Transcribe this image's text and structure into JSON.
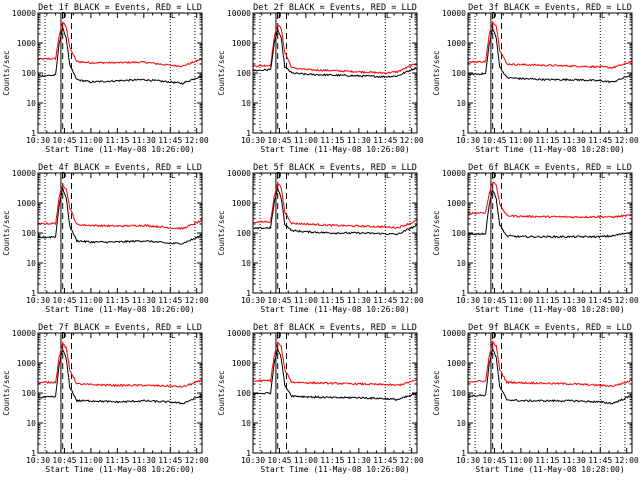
{
  "window": {
    "width": 640,
    "height": 480
  },
  "colors": {
    "background": "#ffffff",
    "events": "#000000",
    "lld": "#ff0000",
    "axis": "#000000"
  },
  "chart_data": [
    {
      "type": "line",
      "title": "Det 1f BLACK = Events, RED = LLD",
      "xlabel": "Start Time (11-May-08 10:26:00)",
      "ylabel": "Counts/sec",
      "yscale": "log",
      "ylim": [
        1,
        10000
      ],
      "xlim": [
        "10:30",
        "12:03"
      ],
      "xticks": [
        "10:30",
        "10:45",
        "11:00",
        "11:15",
        "11:30",
        "11:45",
        "12:00"
      ],
      "yticks": [
        "1",
        "10",
        "100",
        "1000",
        "10000"
      ],
      "markers": {
        "solid_vlines": [
          "10:30",
          "10:43"
        ],
        "dotted_vlines": [
          "10:34",
          "11:45",
          "11:59"
        ],
        "dashed_vlines": [
          "10:44",
          "10:49"
        ],
        "top_glyphs": [
          "D",
          "L"
        ]
      },
      "series": [
        {
          "color": "#ff0000",
          "x": [
            "10:30",
            "10:40",
            "10:42",
            "10:44",
            "10:46",
            "10:48",
            "10:52",
            "11:00",
            "11:15",
            "11:30",
            "11:45",
            "11:52",
            "12:00",
            "12:03"
          ],
          "values": [
            290,
            300,
            1800,
            5000,
            3500,
            700,
            240,
            220,
            220,
            230,
            180,
            170,
            250,
            300
          ]
        },
        {
          "color": "#000000",
          "x": [
            "10:30",
            "10:40",
            "10:42",
            "10:44",
            "10:46",
            "10:48",
            "10:52",
            "11:00",
            "11:15",
            "11:30",
            "11:45",
            "11:52",
            "12:00",
            "12:03"
          ],
          "values": [
            80,
            85,
            1000,
            3000,
            1500,
            180,
            60,
            50,
            55,
            60,
            50,
            45,
            70,
            80
          ]
        }
      ]
    },
    {
      "type": "line",
      "title": "Det 2f BLACK = Events, RED = LLD",
      "xlabel": "Start Time (11-May-08 10:26:00)",
      "ylabel": "Counts/sec",
      "yscale": "log",
      "ylim": [
        1,
        10000
      ],
      "xlim": [
        "10:30",
        "12:03"
      ],
      "xticks": [
        "10:30",
        "10:45",
        "11:00",
        "11:15",
        "11:30",
        "11:45",
        "12:00"
      ],
      "yticks": [
        "1",
        "10",
        "100",
        "1000",
        "10000"
      ],
      "markers": {
        "solid_vlines": [
          "10:30",
          "10:43"
        ],
        "dotted_vlines": [
          "10:34",
          "11:45",
          "11:59"
        ],
        "dashed_vlines": [
          "10:44",
          "10:49"
        ],
        "top_glyphs": [
          "D",
          "L"
        ]
      },
      "series": [
        {
          "color": "#ff0000",
          "x": [
            "10:30",
            "10:40",
            "10:42",
            "10:44",
            "10:46",
            "10:48",
            "10:52",
            "11:00",
            "11:15",
            "11:30",
            "11:45",
            "11:52",
            "12:00",
            "12:03"
          ],
          "values": [
            170,
            180,
            1500,
            4200,
            3000,
            500,
            150,
            130,
            120,
            110,
            100,
            110,
            180,
            200
          ]
        },
        {
          "color": "#000000",
          "x": [
            "10:30",
            "10:40",
            "10:42",
            "10:44",
            "10:46",
            "10:48",
            "10:52",
            "11:00",
            "11:15",
            "11:30",
            "11:45",
            "11:52",
            "12:00",
            "12:03"
          ],
          "values": [
            120,
            130,
            900,
            2800,
            1400,
            160,
            100,
            90,
            85,
            80,
            75,
            80,
            130,
            150
          ]
        }
      ]
    },
    {
      "type": "line",
      "title": "Det 3f BLACK = Events, RED = LLD",
      "xlabel": "Start Time (11-May-08 10:28:00)",
      "ylabel": "Counts/sec",
      "yscale": "log",
      "ylim": [
        1,
        10000
      ],
      "xlim": [
        "10:30",
        "12:03"
      ],
      "xticks": [
        "10:30",
        "10:45",
        "11:00",
        "11:15",
        "11:30",
        "11:45",
        "12:00"
      ],
      "yticks": [
        "1",
        "10",
        "100",
        "1000",
        "10000"
      ],
      "markers": {
        "solid_vlines": [
          "10:30",
          "10:43"
        ],
        "dotted_vlines": [
          "10:34",
          "11:45",
          "11:59"
        ],
        "dashed_vlines": [
          "10:44",
          "10:49"
        ],
        "top_glyphs": [
          "D",
          "L"
        ]
      },
      "series": [
        {
          "color": "#ff0000",
          "x": [
            "10:30",
            "10:40",
            "10:42",
            "10:44",
            "10:46",
            "10:48",
            "10:52",
            "11:00",
            "11:15",
            "11:30",
            "11:45",
            "11:52",
            "12:00",
            "12:03"
          ],
          "values": [
            230,
            240,
            1800,
            5000,
            3800,
            600,
            200,
            190,
            180,
            170,
            160,
            150,
            210,
            250
          ]
        },
        {
          "color": "#000000",
          "x": [
            "10:30",
            "10:40",
            "10:42",
            "10:44",
            "10:46",
            "10:48",
            "10:52",
            "11:00",
            "11:15",
            "11:30",
            "11:45",
            "11:52",
            "12:00",
            "12:03"
          ],
          "values": [
            90,
            95,
            900,
            3000,
            1500,
            160,
            70,
            65,
            60,
            60,
            55,
            50,
            75,
            90
          ]
        }
      ]
    },
    {
      "type": "line",
      "title": "Det 4f BLACK = Events, RED = LLD",
      "xlabel": "Start Time (11-May-08 10:26:00)",
      "ylabel": "Counts/sec",
      "yscale": "log",
      "ylim": [
        1,
        10000
      ],
      "xlim": [
        "10:30",
        "12:03"
      ],
      "xticks": [
        "10:30",
        "10:45",
        "11:00",
        "11:15",
        "11:30",
        "11:45",
        "12:00"
      ],
      "yticks": [
        "1",
        "10",
        "100",
        "1000",
        "10000"
      ],
      "markers": {
        "solid_vlines": [
          "10:30",
          "10:43"
        ],
        "dotted_vlines": [
          "10:34",
          "11:45",
          "11:59"
        ],
        "dashed_vlines": [
          "10:44",
          "10:49"
        ],
        "top_glyphs": [
          "D",
          "L"
        ]
      },
      "series": [
        {
          "color": "#ff0000",
          "x": [
            "10:30",
            "10:40",
            "10:42",
            "10:44",
            "10:46",
            "10:48",
            "10:52",
            "11:00",
            "11:15",
            "11:30",
            "11:45",
            "11:52",
            "12:00",
            "12:03"
          ],
          "values": [
            200,
            210,
            1500,
            4200,
            3000,
            700,
            190,
            180,
            170,
            180,
            150,
            140,
            220,
            260
          ]
        },
        {
          "color": "#000000",
          "x": [
            "10:30",
            "10:40",
            "10:42",
            "10:44",
            "10:46",
            "10:48",
            "10:52",
            "11:00",
            "11:15",
            "11:30",
            "11:45",
            "11:52",
            "12:00",
            "12:03"
          ],
          "values": [
            70,
            75,
            900,
            3000,
            1500,
            170,
            55,
            50,
            50,
            55,
            45,
            45,
            70,
            85
          ]
        }
      ]
    },
    {
      "type": "line",
      "title": "Det 5f BLACK = Events, RED = LLD",
      "xlabel": "Start Time (11-May-08 10:26:00)",
      "ylabel": "Counts/sec",
      "yscale": "log",
      "ylim": [
        1,
        10000
      ],
      "xlim": [
        "10:30",
        "12:03"
      ],
      "xticks": [
        "10:30",
        "10:45",
        "11:00",
        "11:15",
        "11:30",
        "11:45",
        "12:00"
      ],
      "yticks": [
        "1",
        "10",
        "100",
        "1000",
        "10000"
      ],
      "markers": {
        "solid_vlines": [
          "10:30",
          "10:43"
        ],
        "dotted_vlines": [
          "10:34",
          "11:45",
          "11:59"
        ],
        "dashed_vlines": [
          "10:44",
          "10:49"
        ],
        "top_glyphs": [
          "D",
          "L"
        ]
      },
      "series": [
        {
          "color": "#ff0000",
          "x": [
            "10:30",
            "10:40",
            "10:42",
            "10:44",
            "10:46",
            "10:48",
            "10:52",
            "11:00",
            "11:15",
            "11:30",
            "11:45",
            "11:52",
            "12:00",
            "12:03"
          ],
          "values": [
            230,
            240,
            1600,
            4500,
            3200,
            500,
            210,
            200,
            180,
            170,
            160,
            150,
            220,
            260
          ]
        },
        {
          "color": "#000000",
          "x": [
            "10:30",
            "10:40",
            "10:42",
            "10:44",
            "10:46",
            "10:48",
            "10:52",
            "11:00",
            "11:15",
            "11:30",
            "11:45",
            "11:52",
            "12:00",
            "12:03"
          ],
          "values": [
            140,
            150,
            1000,
            3000,
            1500,
            200,
            120,
            110,
            100,
            100,
            95,
            90,
            150,
            180
          ]
        }
      ]
    },
    {
      "type": "line",
      "title": "Det 6f BLACK = Events, RED = LLD",
      "xlabel": "Start Time (11-May-08 10:28:00)",
      "ylabel": "Counts/sec",
      "yscale": "log",
      "ylim": [
        1,
        10000
      ],
      "xlim": [
        "10:30",
        "12:03"
      ],
      "xticks": [
        "10:30",
        "10:45",
        "11:00",
        "11:15",
        "11:30",
        "11:45",
        "12:00"
      ],
      "yticks": [
        "1",
        "10",
        "100",
        "1000",
        "10000"
      ],
      "markers": {
        "solid_vlines": [
          "10:30",
          "10:43"
        ],
        "dotted_vlines": [
          "10:34",
          "11:45",
          "11:59"
        ],
        "dashed_vlines": [
          "10:44",
          "10:49"
        ],
        "top_glyphs": [
          "D",
          "L"
        ]
      },
      "series": [
        {
          "color": "#ff0000",
          "x": [
            "10:30",
            "10:40",
            "10:42",
            "10:44",
            "10:46",
            "10:48",
            "10:52",
            "11:00",
            "11:15",
            "11:30",
            "11:45",
            "11:52",
            "12:00",
            "12:03"
          ],
          "values": [
            450,
            480,
            2000,
            5000,
            4200,
            900,
            380,
            360,
            350,
            340,
            350,
            340,
            380,
            400
          ]
        },
        {
          "color": "#000000",
          "x": [
            "10:30",
            "10:40",
            "10:42",
            "10:44",
            "10:46",
            "10:48",
            "10:52",
            "11:00",
            "11:15",
            "11:30",
            "11:45",
            "11:52",
            "12:00",
            "12:03"
          ],
          "values": [
            90,
            95,
            900,
            2800,
            1400,
            180,
            80,
            75,
            75,
            75,
            75,
            80,
            100,
            110
          ]
        }
      ]
    },
    {
      "type": "line",
      "title": "Det 7f BLACK = Events, RED = LLD",
      "xlabel": "Start Time (11-May-08 10:26:00)",
      "ylabel": "Counts/sec",
      "yscale": "log",
      "ylim": [
        1,
        10000
      ],
      "xlim": [
        "10:30",
        "12:03"
      ],
      "xticks": [
        "10:30",
        "10:45",
        "11:00",
        "11:15",
        "11:30",
        "11:45",
        "12:00"
      ],
      "yticks": [
        "1",
        "10",
        "100",
        "1000",
        "10000"
      ],
      "markers": {
        "solid_vlines": [
          "10:30",
          "10:43"
        ],
        "dotted_vlines": [
          "10:34",
          "11:45",
          "11:59"
        ],
        "dashed_vlines": [
          "10:44",
          "10:49"
        ],
        "top_glyphs": [
          "D",
          "L"
        ]
      },
      "series": [
        {
          "color": "#ff0000",
          "x": [
            "10:30",
            "10:40",
            "10:42",
            "10:44",
            "10:46",
            "10:48",
            "10:52",
            "11:00",
            "11:15",
            "11:30",
            "11:45",
            "11:52",
            "12:00",
            "12:03"
          ],
          "values": [
            220,
            230,
            1600,
            4500,
            3200,
            600,
            200,
            190,
            180,
            180,
            170,
            160,
            230,
            260
          ]
        },
        {
          "color": "#000000",
          "x": [
            "10:30",
            "10:40",
            "10:42",
            "10:44",
            "10:46",
            "10:48",
            "10:52",
            "11:00",
            "11:15",
            "11:30",
            "11:45",
            "11:52",
            "12:00",
            "12:03"
          ],
          "values": [
            70,
            75,
            900,
            2800,
            1400,
            160,
            55,
            55,
            50,
            55,
            50,
            45,
            70,
            80
          ]
        }
      ]
    },
    {
      "type": "line",
      "title": "Det 8f BLACK = Events, RED = LLD",
      "xlabel": "Start Time (11-May-08 10:26:00)",
      "ylabel": "Counts/sec",
      "yscale": "log",
      "ylim": [
        1,
        10000
      ],
      "xlim": [
        "10:30",
        "12:03"
      ],
      "xticks": [
        "10:30",
        "10:45",
        "11:00",
        "11:15",
        "11:30",
        "11:45",
        "12:00"
      ],
      "yticks": [
        "1",
        "10",
        "100",
        "1000",
        "10000"
      ],
      "markers": {
        "solid_vlines": [
          "10:30",
          "10:43"
        ],
        "dotted_vlines": [
          "10:34",
          "11:45",
          "11:59"
        ],
        "dashed_vlines": [
          "10:44",
          "10:49"
        ],
        "top_glyphs": [
          "D",
          "L"
        ]
      },
      "series": [
        {
          "color": "#ff0000",
          "x": [
            "10:30",
            "10:40",
            "10:42",
            "10:44",
            "10:46",
            "10:48",
            "10:52",
            "11:00",
            "11:15",
            "11:30",
            "11:45",
            "11:52",
            "12:00",
            "12:03"
          ],
          "values": [
            250,
            260,
            1700,
            4800,
            3500,
            600,
            230,
            220,
            210,
            200,
            190,
            180,
            240,
            270
          ]
        },
        {
          "color": "#000000",
          "x": [
            "10:30",
            "10:40",
            "10:42",
            "10:44",
            "10:46",
            "10:48",
            "10:52",
            "11:00",
            "11:15",
            "11:30",
            "11:45",
            "11:52",
            "12:00",
            "12:03"
          ],
          "values": [
            95,
            100,
            1000,
            3000,
            1500,
            180,
            80,
            75,
            70,
            70,
            65,
            60,
            85,
            100
          ]
        }
      ]
    },
    {
      "type": "line",
      "title": "Det 9f BLACK = Events, RED = LLD",
      "xlabel": "Start Time (11-May-08 10:28:00)",
      "ylabel": "Counts/sec",
      "yscale": "log",
      "ylim": [
        1,
        10000
      ],
      "xlim": [
        "10:30",
        "12:03"
      ],
      "xticks": [
        "10:30",
        "10:45",
        "11:00",
        "11:15",
        "11:30",
        "11:45",
        "12:00"
      ],
      "yticks": [
        "1",
        "10",
        "100",
        "1000",
        "10000"
      ],
      "markers": {
        "solid_vlines": [
          "10:30",
          "10:43"
        ],
        "dotted_vlines": [
          "10:34",
          "11:45",
          "11:59"
        ],
        "dashed_vlines": [
          "10:44",
          "10:49"
        ],
        "top_glyphs": [
          "D",
          "L"
        ]
      },
      "series": [
        {
          "color": "#ff0000",
          "x": [
            "10:30",
            "10:40",
            "10:42",
            "10:44",
            "10:46",
            "10:48",
            "10:52",
            "11:00",
            "11:15",
            "11:30",
            "11:45",
            "11:52",
            "12:00",
            "12:03"
          ],
          "values": [
            240,
            250,
            1700,
            5000,
            3600,
            600,
            230,
            220,
            210,
            200,
            180,
            170,
            230,
            270
          ]
        },
        {
          "color": "#000000",
          "x": [
            "10:30",
            "10:40",
            "10:42",
            "10:44",
            "10:46",
            "10:48",
            "10:52",
            "11:00",
            "11:15",
            "11:30",
            "11:45",
            "11:52",
            "12:00",
            "12:03"
          ],
          "values": [
            80,
            85,
            900,
            3000,
            1500,
            160,
            60,
            55,
            55,
            55,
            50,
            45,
            70,
            85
          ]
        }
      ]
    }
  ]
}
